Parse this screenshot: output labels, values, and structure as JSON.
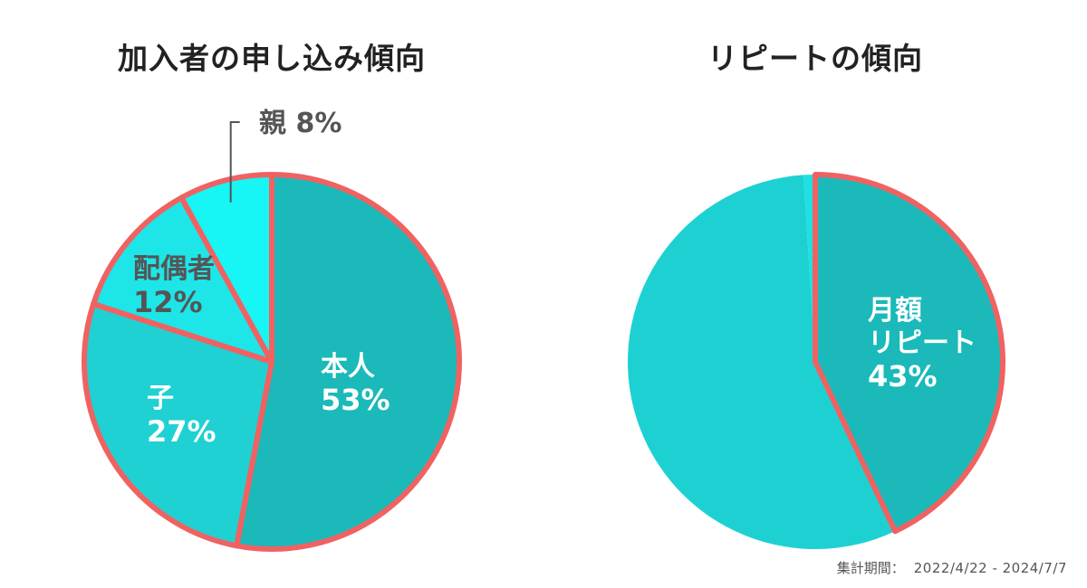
{
  "colors": {
    "outline": "#f06262",
    "pie_left": [
      "#1bb9b9",
      "#1fd1d3",
      "#1ee5e7",
      "#17f5f5"
    ],
    "pie_right": [
      "#1bb9b9",
      "#1dd1d3",
      "#1ee0e2"
    ],
    "label_dark": "#555555",
    "label_light": "#ffffff"
  },
  "footnote": {
    "label": "集計期間：",
    "period": "2022/4/22 - 2024/7/7"
  },
  "chart_data": [
    {
      "type": "pie",
      "title": "加入者の申し込み傾向",
      "slices": [
        {
          "label": "本人",
          "value": 53,
          "display": "53%",
          "text_color": "light",
          "highlight": true
        },
        {
          "label": "子",
          "value": 27,
          "display": "27%",
          "text_color": "light",
          "highlight": true
        },
        {
          "label": "配偶者",
          "value": 12,
          "display": "12%",
          "text_color": "dark",
          "highlight": true
        },
        {
          "label": "親",
          "value": 8,
          "display": "8%",
          "text_color": "dark",
          "highlight": true
        }
      ]
    },
    {
      "type": "pie",
      "title": "リピートの傾向",
      "slices": [
        {
          "label": "月額リピート",
          "label_lines": [
            "月額",
            "リピート"
          ],
          "value": 43,
          "display": "43%",
          "text_color": "light",
          "highlight": true
        },
        {
          "label": "",
          "value": 56,
          "display": "",
          "text_color": "light",
          "highlight": false
        },
        {
          "label": "",
          "value": 1,
          "display": "",
          "text_color": "light",
          "highlight": false
        }
      ]
    }
  ]
}
